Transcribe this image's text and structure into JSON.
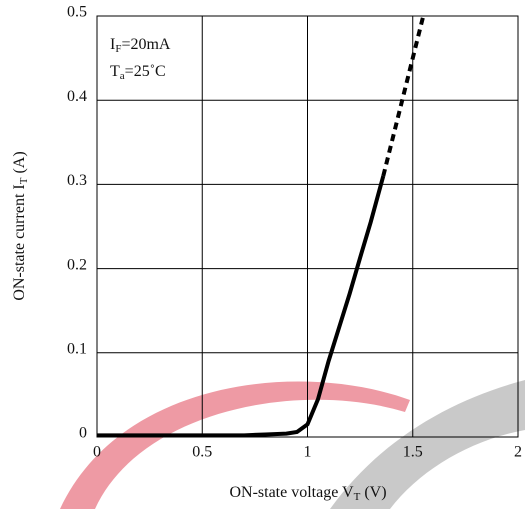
{
  "chart_data": {
    "type": "line",
    "annotations": [
      {
        "main": "I",
        "sub": "F",
        "rest": "=20mA"
      },
      {
        "main": "T",
        "sub": "a",
        "rest": "=25˚C"
      }
    ],
    "x_label": {
      "main": "ON-state voltage V",
      "sub": "T",
      "rest": " (V)"
    },
    "y_label": {
      "main": "ON-state current I",
      "sub": "T",
      "rest": " (A)"
    },
    "x": [
      0,
      0.1,
      0.2,
      0.3,
      0.4,
      0.5,
      0.6,
      0.7,
      0.8,
      0.9,
      0.95,
      1.0,
      1.05,
      1.1,
      1.15,
      1.2,
      1.25,
      1.3,
      1.36,
      1.4,
      1.45,
      1.5,
      1.55
    ],
    "series": [
      {
        "color": "#000000",
        "dashed": false,
        "values": [
          0.002,
          0.002,
          0.002,
          0.002,
          0.002,
          0.002,
          0.002,
          0.002,
          0.003,
          0.004,
          0.006,
          0.015,
          0.045,
          0.09,
          0.13,
          0.17,
          0.213,
          0.255,
          0.31,
          null,
          null,
          null,
          null
        ]
      },
      {
        "color": "#000000",
        "dashed": true,
        "values": [
          null,
          null,
          null,
          null,
          null,
          null,
          null,
          null,
          null,
          null,
          null,
          null,
          null,
          null,
          null,
          null,
          null,
          null,
          0.31,
          0.35,
          0.4,
          0.45,
          0.5
        ]
      }
    ],
    "xlim": [
      0,
      2
    ],
    "xticks": [
      0,
      0.5,
      1,
      1.5,
      2
    ],
    "ylim": [
      0,
      0.5
    ],
    "yticks": [
      0,
      0.1,
      0.2,
      0.3,
      0.4,
      0.5
    ],
    "grid": true
  }
}
